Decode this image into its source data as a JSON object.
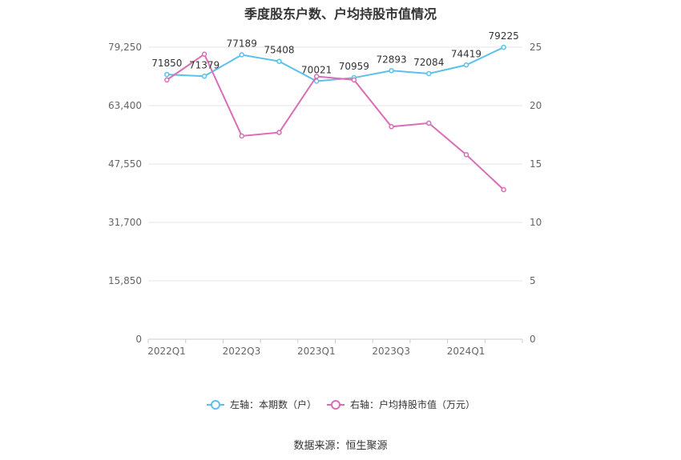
{
  "title": "季度股东户数、户均持股市值情况",
  "source": "数据来源：恒生聚源",
  "colors": {
    "left_series": "#5bc0eb",
    "right_series": "#d96eb6",
    "grid": "#e6e6e6",
    "axis": "#cccccc"
  },
  "chart_data": {
    "type": "line",
    "categories": [
      "2022Q1",
      "2022Q2",
      "2022Q3",
      "2022Q4",
      "2023Q1",
      "2023Q2",
      "2023Q3",
      "2023Q4",
      "2024Q1",
      "2024Q2"
    ],
    "x_tick_labels": [
      "2022Q1",
      "",
      "2022Q3",
      "",
      "2023Q1",
      "",
      "2023Q3",
      "",
      "2024Q1",
      ""
    ],
    "left_axis": {
      "ticks": [
        "0",
        "15,850",
        "31,700",
        "47,550",
        "63,400",
        "79,250"
      ],
      "ylim": [
        0,
        79250
      ]
    },
    "right_axis": {
      "ticks": [
        "0",
        "5",
        "10",
        "15",
        "20",
        "25"
      ],
      "ylim": [
        0,
        25
      ]
    },
    "grid": true,
    "legend_position": "bottom",
    "series": [
      {
        "name": "左轴：本期数（户）",
        "axis": "left",
        "values": [
          71850,
          71379,
          77189,
          75408,
          70021,
          70959,
          72893,
          72084,
          74419,
          79225
        ],
        "labels": [
          "71850",
          "71379",
          "77189",
          "75408",
          "70021",
          "70959",
          "72893",
          "72084",
          "74419",
          "79225"
        ]
      },
      {
        "name": "右轴：户均持股市值（万元）",
        "axis": "right",
        "values": [
          22.2,
          24.4,
          17.4,
          17.7,
          22.5,
          22.2,
          18.2,
          18.5,
          15.8,
          12.8
        ]
      }
    ]
  }
}
